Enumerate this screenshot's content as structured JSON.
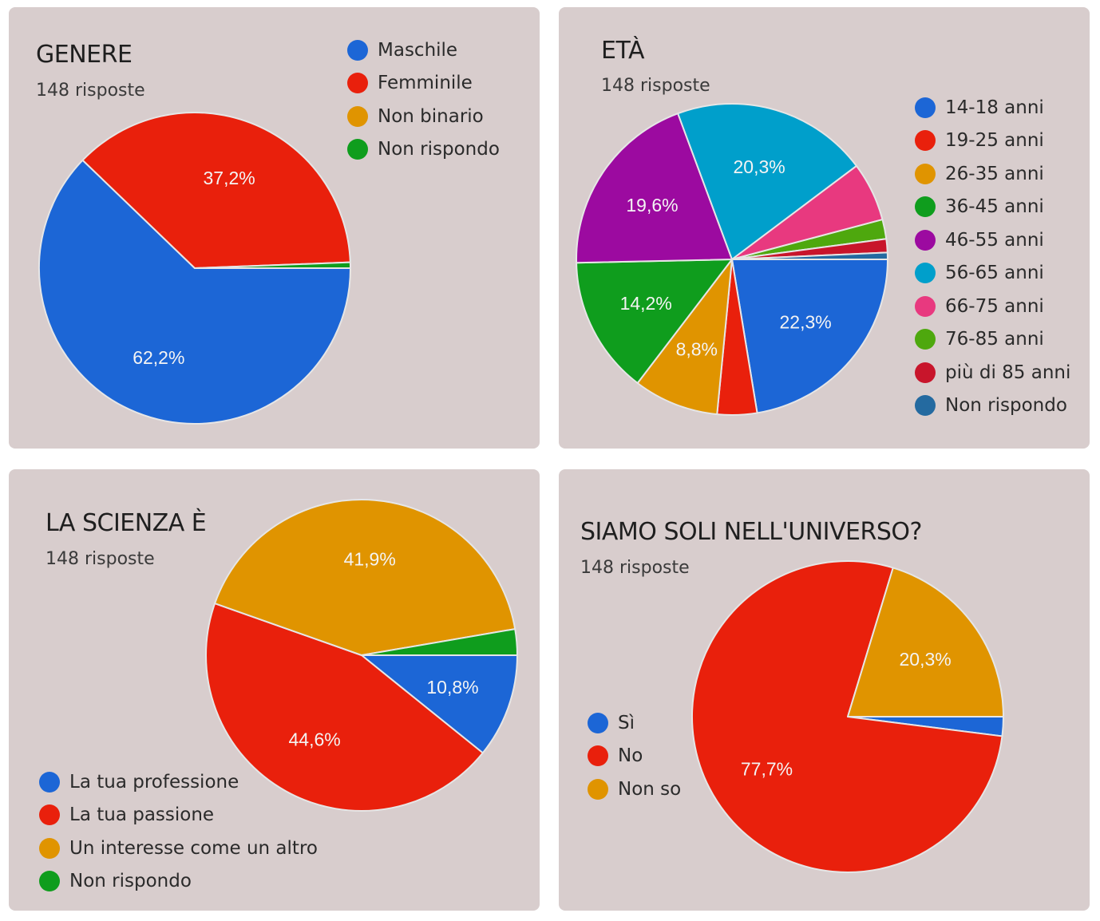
{
  "chart_data": [
    {
      "id": "genere",
      "type": "pie",
      "title": "GENERE",
      "subtitle": "148 risposte",
      "categories": [
        "Maschile",
        "Femminile",
        "Non binario",
        "Non rispondo"
      ],
      "values": [
        62.2,
        37.2,
        0,
        0.6
      ],
      "colors": [
        "#1c66d6",
        "#e9200c",
        "#e09400",
        "#0f9d1d"
      ],
      "labels": [
        "62,2%",
        "37,2%",
        "",
        ""
      ],
      "legend_position": "top-right"
    },
    {
      "id": "eta",
      "type": "pie",
      "title": "ETÀ",
      "subtitle": "148 risposte",
      "categories": [
        "14-18 anni",
        "19-25 anni",
        "26-35 anni",
        "36-45 anni",
        "46-55 anni",
        "56-65 anni",
        "66-75 anni",
        "76-85 anni",
        "più di 85 anni",
        "Non rispondo"
      ],
      "values": [
        22.3,
        4.1,
        8.8,
        14.2,
        19.6,
        20.3,
        6.1,
        2.0,
        1.4,
        0.7
      ],
      "colors": [
        "#1c66d6",
        "#e9200c",
        "#e09400",
        "#0f9d1d",
        "#9c0aa0",
        "#009fcb",
        "#e8397f",
        "#4ea80e",
        "#c8152b",
        "#246aa0"
      ],
      "labels": [
        "22,3%",
        "",
        "8,8%",
        "14,2%",
        "19,6%",
        "20,3%",
        "",
        "",
        "",
        ""
      ],
      "legend_position": "right"
    },
    {
      "id": "scienza",
      "type": "pie",
      "title": "LA SCIENZA È",
      "subtitle": "148 risposte",
      "categories": [
        "La tua professione",
        "La tua passione",
        "Un interesse come un altro",
        "Non rispondo"
      ],
      "values": [
        10.8,
        44.6,
        41.9,
        2.7
      ],
      "colors": [
        "#1c66d6",
        "#e9200c",
        "#e09400",
        "#0f9d1d"
      ],
      "labels": [
        "10,8%",
        "44,6%",
        "41,9%",
        ""
      ],
      "legend_position": "bottom-left"
    },
    {
      "id": "siamo",
      "type": "pie",
      "title": "SIAMO SOLI NELL'UNIVERSO?",
      "subtitle": "148 risposte",
      "categories": [
        "Sì",
        "No",
        "Non so"
      ],
      "values": [
        2.0,
        77.7,
        20.3
      ],
      "colors": [
        "#1c66d6",
        "#e9200c",
        "#e09400"
      ],
      "labels": [
        "",
        "77,7%",
        "20,3%"
      ],
      "legend_position": "left"
    }
  ]
}
